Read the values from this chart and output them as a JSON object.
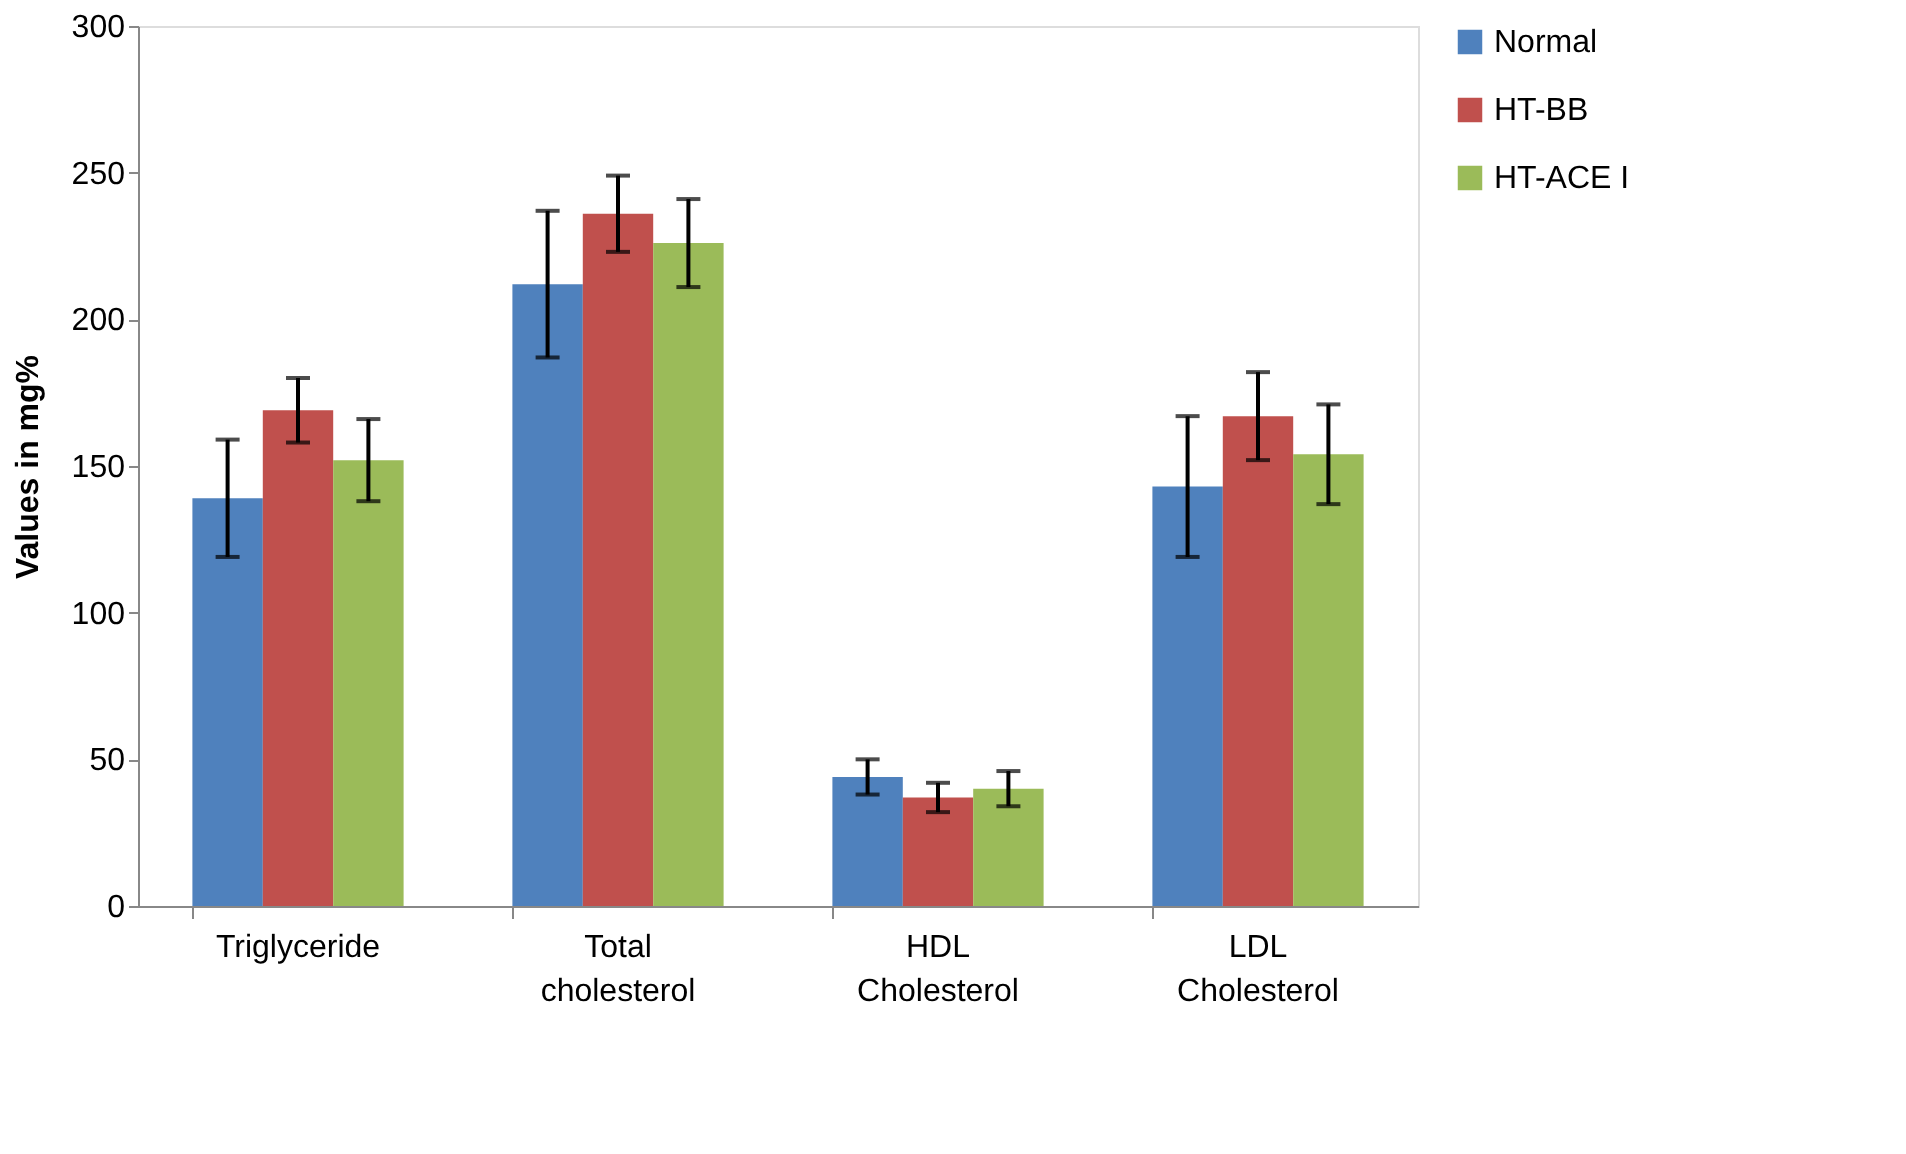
{
  "chart_data": {
    "type": "bar",
    "ylabel": "Values in mg%",
    "categories": [
      "Triglyceride",
      "Total cholesterol",
      "HDL Cholesterol",
      "LDL Cholesterol"
    ],
    "series": [
      {
        "name": "Normal",
        "color": "#4f81bd",
        "values": [
          139,
          212,
          44,
          143
        ],
        "errors": [
          20,
          25,
          6,
          24
        ]
      },
      {
        "name": "HT-BB",
        "color": "#c0504d",
        "values": [
          169,
          236,
          37,
          167
        ],
        "errors": [
          11,
          13,
          5,
          15
        ]
      },
      {
        "name": "HT-ACE I",
        "color": "#9bbb59",
        "values": [
          152,
          226,
          40,
          154
        ],
        "errors": [
          14,
          15,
          6,
          17
        ]
      }
    ],
    "ylim": [
      0,
      300
    ],
    "yticks": [
      0,
      50,
      100,
      150,
      200,
      250,
      300
    ],
    "grid": false,
    "legend": "right"
  }
}
